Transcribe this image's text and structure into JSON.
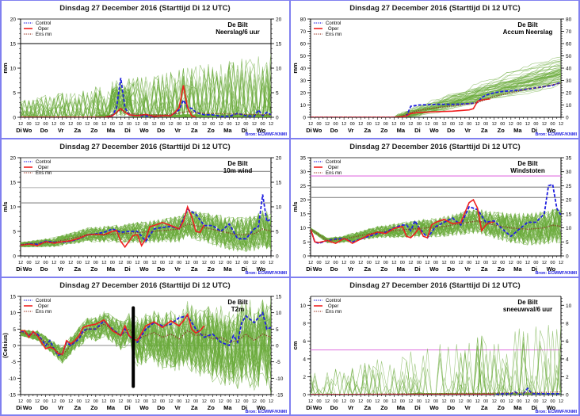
{
  "page": {
    "title": "Dinsdag 27 December 2016",
    "start_label": "(Starttijd Di 12 UTC)",
    "source": "Bron: ECMWF/KNMI",
    "legend": [
      {
        "label": "Control",
        "color": "#2020e0",
        "style": "dotted-dashed"
      },
      {
        "label": "Oper",
        "color": "#f02020",
        "style": "solid"
      },
      {
        "label": "Ens mn",
        "color": "#a04030",
        "style": "dotted"
      }
    ],
    "colors": {
      "ensemble": "#6aaa3a",
      "control": "#2020e0",
      "oper": "#f02020",
      "ensmean": "#8b3a2a",
      "threshold_magenta": "#e070e0",
      "divider": "#8080f0"
    }
  },
  "x_axis": {
    "hour_labels": [
      "12",
      "00",
      "12",
      "00",
      "12",
      "00",
      "12",
      "00",
      "12",
      "00",
      "12",
      "00",
      "12",
      "00",
      "12",
      "00",
      "12",
      "00",
      "12",
      "00",
      "12",
      "00",
      "12",
      "00",
      "12",
      "00",
      "12",
      "00",
      "12",
      "00",
      "12"
    ],
    "day_labels": [
      "Di",
      "Wo",
      "Do",
      "Vr",
      "Za",
      "Zo",
      "Ma",
      "Di",
      "Wo",
      "Do",
      "Vr",
      "Za",
      "Zo",
      "Ma",
      "Di",
      "Wo"
    ]
  },
  "chart_data": [
    {
      "type": "line",
      "location": "De Bilt",
      "title": "Neerslag/6 uur",
      "ylabel": "mm",
      "ylim": [
        0,
        20
      ],
      "yticks": [
        0,
        5,
        10,
        15,
        20
      ],
      "hlines": [
        {
          "y": 15,
          "color": "#000000"
        }
      ],
      "x_unit": "hours since Di 12 UTC",
      "xlim": [
        0,
        360
      ],
      "series": [
        {
          "name": "Control",
          "x": [
            0,
            120,
            132,
            138,
            144,
            150,
            156,
            168,
            192,
            216,
            228,
            234,
            240,
            246,
            252,
            264,
            276,
            288,
            300,
            312,
            324,
            336,
            342,
            348,
            354,
            360
          ],
          "values": [
            0,
            0,
            0.3,
            2,
            8,
            2,
            0.5,
            0.3,
            0.2,
            0.3,
            1.5,
            3.5,
            2,
            1.8,
            1,
            0.5,
            0.5,
            0.2,
            0.2,
            0.8,
            0.3,
            0.2,
            1.5,
            0.3,
            1,
            0.5
          ]
        },
        {
          "name": "Oper",
          "x": [
            0,
            120,
            132,
            138,
            144,
            150,
            156,
            168,
            180,
            192,
            204,
            216,
            222,
            228,
            234,
            240,
            246,
            252
          ],
          "values": [
            0,
            0,
            0.3,
            1,
            1.8,
            1,
            0.5,
            0.3,
            0.6,
            0.2,
            0.3,
            0.3,
            1,
            2,
            6.5,
            2,
            0.3,
            0
          ]
        },
        {
          "name": "Ens mn",
          "x": [
            0,
            120,
            132,
            144,
            156,
            180,
            204,
            228,
            240,
            264,
            300,
            330,
            360
          ],
          "values": [
            0,
            0,
            0.5,
            1.5,
            0.8,
            0.5,
            0.5,
            0.8,
            1.2,
            0.8,
            0.7,
            0.6,
            0.5
          ]
        }
      ]
    },
    {
      "type": "line",
      "location": "De Bilt",
      "title": "Accum Neerslag",
      "ylabel": "mm",
      "ylim": [
        0,
        80
      ],
      "yticks": [
        0,
        10,
        20,
        30,
        40,
        50,
        60,
        70,
        80
      ],
      "xlim": [
        0,
        360
      ],
      "series": [
        {
          "name": "Control",
          "x": [
            0,
            120,
            132,
            138,
            144,
            150,
            156,
            180,
            204,
            228,
            240,
            246,
            252,
            264,
            276,
            300,
            324,
            348,
            360
          ],
          "values": [
            0,
            0,
            0.5,
            1,
            9,
            9.5,
            10,
            10.5,
            10.5,
            11,
            12,
            16,
            18,
            20,
            21,
            22,
            24,
            26,
            28.5
          ]
        },
        {
          "name": "Oper",
          "x": [
            0,
            120,
            132,
            138,
            144,
            150,
            156,
            180,
            204,
            228,
            234,
            240,
            246,
            252,
            258
          ],
          "values": [
            0,
            0,
            0.5,
            1,
            3,
            3.5,
            4,
            4.5,
            5,
            6,
            7,
            13,
            14,
            14.5,
            15
          ]
        },
        {
          "name": "Ens mn",
          "x": [
            0,
            120,
            132,
            144,
            168,
            192,
            216,
            240,
            264,
            288,
            312,
            336,
            360
          ],
          "values": [
            0,
            0,
            1,
            4,
            7,
            8.5,
            10,
            12,
            17,
            20,
            23,
            25,
            28
          ]
        }
      ]
    },
    {
      "type": "line",
      "location": "De Bilt",
      "title": "10m wind",
      "ylabel": "m/s",
      "ylim": [
        0,
        20
      ],
      "yticks": [
        0,
        5,
        10,
        15,
        20
      ],
      "hlines": [
        {
          "y": 17.2,
          "color": "#888888"
        },
        {
          "y": 13.9,
          "color": "#bbbbbb"
        },
        {
          "y": 10.8,
          "color": "#888888"
        }
      ],
      "xlim": [
        0,
        360
      ],
      "series": [
        {
          "name": "Control",
          "x": [
            0,
            12,
            24,
            36,
            48,
            60,
            72,
            84,
            96,
            108,
            120,
            132,
            144,
            156,
            168,
            180,
            192,
            204,
            216,
            228,
            240,
            252,
            264,
            276,
            288,
            300,
            312,
            324,
            336,
            342,
            348,
            354,
            360
          ],
          "values": [
            2.2,
            2.5,
            2.4,
            3,
            2.8,
            2.8,
            3,
            3.5,
            4.3,
            4.5,
            4.8,
            5.5,
            4.8,
            5,
            5,
            3,
            5.5,
            5.8,
            6,
            5.5,
            9.5,
            8.5,
            6.2,
            6.2,
            5,
            6.5,
            3.5,
            3.5,
            5.5,
            6,
            12.5,
            7,
            7.5
          ]
        },
        {
          "name": "Oper",
          "x": [
            0,
            12,
            24,
            36,
            48,
            60,
            72,
            84,
            96,
            108,
            120,
            132,
            138,
            144,
            150,
            156,
            162,
            168,
            174,
            180,
            186,
            192,
            204,
            216,
            228,
            234,
            240,
            246,
            252,
            258,
            264
          ],
          "values": [
            2.2,
            2.4,
            2.1,
            2.9,
            2.6,
            2.9,
            3.1,
            3.6,
            4.3,
            4.4,
            4.3,
            5,
            5.2,
            3,
            1.8,
            3,
            4.2,
            4.3,
            2.1,
            3.5,
            6,
            6.2,
            6.8,
            6.2,
            5.5,
            7,
            10,
            8,
            5,
            4.8,
            6.3
          ]
        },
        {
          "name": "Ens mn",
          "x": [
            0,
            48,
            96,
            144,
            192,
            228,
            240,
            264,
            288,
            312,
            336,
            348,
            360
          ],
          "values": [
            2.3,
            2.8,
            4.3,
            4.5,
            5,
            5.5,
            6.5,
            5.8,
            5,
            4.3,
            4.5,
            5.5,
            5
          ]
        }
      ]
    },
    {
      "type": "line",
      "location": "De Bilt",
      "title": "Windstoten",
      "ylabel": "m/s",
      "ylim": [
        0,
        35
      ],
      "yticks": [
        0,
        5,
        10,
        15,
        20,
        25,
        30,
        35
      ],
      "hlines": [
        {
          "y": 28.5,
          "color": "#e070e0"
        },
        {
          "y": 24.5,
          "color": "#888888"
        },
        {
          "y": 20.8,
          "color": "#888888"
        }
      ],
      "xlim": [
        0,
        360
      ],
      "series": [
        {
          "name": "Control",
          "x": [
            0,
            6,
            12,
            24,
            36,
            48,
            60,
            72,
            84,
            96,
            108,
            120,
            132,
            138,
            144,
            150,
            156,
            168,
            180,
            192,
            204,
            216,
            228,
            240,
            252,
            264,
            276,
            288,
            300,
            312,
            324,
            336,
            342,
            348,
            354,
            360
          ],
          "values": [
            9.5,
            5,
            4.5,
            5.5,
            6,
            6.2,
            5,
            6,
            7,
            8,
            8.5,
            10,
            11,
            11,
            9,
            12.5,
            10,
            6.5,
            10.5,
            12,
            13.5,
            11,
            17.5,
            16.5,
            12,
            12.5,
            9.5,
            7,
            9.5,
            12,
            12,
            15,
            25,
            25.5,
            17,
            14.5
          ]
        },
        {
          "name": "Oper",
          "x": [
            0,
            6,
            12,
            24,
            36,
            48,
            54,
            60,
            72,
            84,
            96,
            108,
            120,
            132,
            138,
            144,
            150,
            156,
            162,
            168,
            174,
            180,
            192,
            204,
            216,
            228,
            234,
            240,
            246,
            252,
            258,
            264
          ],
          "values": [
            9.5,
            5,
            4.8,
            5.5,
            4.5,
            6.2,
            5.5,
            4.5,
            6,
            7.5,
            8.5,
            8,
            9.8,
            10.5,
            7,
            6.5,
            8,
            10,
            7,
            6.5,
            11,
            12,
            13,
            11.5,
            12,
            19,
            20,
            17,
            9,
            11,
            12,
            12
          ]
        },
        {
          "name": "Ens mn",
          "x": [
            0,
            24,
            48,
            96,
            144,
            192,
            240,
            264,
            288,
            312,
            336,
            348,
            360
          ],
          "values": [
            9.5,
            5.5,
            6,
            8.5,
            9.5,
            10.5,
            12.5,
            11,
            10,
            9.5,
            10,
            11,
            10.5
          ]
        }
      ]
    },
    {
      "type": "line",
      "location": "De Bilt",
      "title": "T2m",
      "ylabel": "(Celsius)",
      "ylim": [
        -15,
        15
      ],
      "yticks": [
        -15,
        -10,
        -5,
        0,
        5,
        10,
        15
      ],
      "hlines": [
        {
          "y": 0,
          "color": "#888888"
        }
      ],
      "vmarker": {
        "x": 162,
        "from": -12.5,
        "to": 11.5
      },
      "xlim": [
        0,
        360
      ],
      "series": [
        {
          "name": "Control",
          "x": [
            0,
            6,
            12,
            18,
            24,
            30,
            36,
            42,
            48,
            54,
            60,
            66,
            72,
            78,
            84,
            90,
            96,
            108,
            120,
            132,
            144,
            150,
            156,
            162,
            168,
            180,
            192,
            204,
            216,
            228,
            240,
            252,
            264,
            276,
            288,
            300,
            306,
            312,
            318,
            324,
            336,
            348,
            354,
            360
          ],
          "values": [
            4.5,
            4,
            3,
            4,
            3.5,
            2,
            0,
            1.5,
            -1,
            -3,
            -2.5,
            1,
            0,
            1,
            2,
            4.5,
            5,
            5,
            7.5,
            5,
            3,
            5,
            3,
            1.5,
            1,
            5,
            7,
            6,
            6.5,
            8.5,
            9,
            5,
            2.5,
            3.5,
            1,
            0,
            3,
            1,
            7,
            9,
            7,
            10,
            5,
            5.5
          ]
        },
        {
          "name": "Oper",
          "x": [
            0,
            6,
            12,
            18,
            24,
            30,
            36,
            42,
            48,
            54,
            60,
            66,
            72,
            78,
            84,
            90,
            96,
            108,
            120,
            132,
            144,
            150,
            156,
            162,
            168,
            180,
            192,
            204,
            216,
            228,
            234,
            240,
            246,
            252,
            258,
            264
          ],
          "values": [
            4.5,
            4.5,
            2.5,
            4.3,
            3,
            1,
            -1,
            -0.5,
            -1,
            -2.5,
            -2.7,
            1.5,
            0.5,
            1.5,
            3,
            5.5,
            6,
            6.5,
            7.8,
            4.5,
            3,
            6,
            3,
            2,
            1.5,
            6,
            7.2,
            5.5,
            7.5,
            6,
            7.5,
            9.5,
            5,
            3.8,
            4.5,
            6
          ]
        },
        {
          "name": "Ens mn",
          "x": [
            0,
            12,
            24,
            36,
            48,
            60,
            72,
            84,
            96,
            108,
            120,
            132,
            144,
            156,
            168,
            180,
            192,
            204,
            216,
            228,
            240,
            252,
            264,
            276,
            288,
            300,
            312,
            324,
            336,
            348,
            360
          ],
          "values": [
            4,
            3.5,
            3,
            1,
            -1,
            -3,
            0,
            2.5,
            5,
            5,
            6.5,
            5,
            3,
            5,
            2,
            3,
            4,
            2.5,
            3.5,
            2,
            4.5,
            3,
            3.5,
            2,
            2.5,
            1,
            1.5,
            3.5,
            1.5,
            3.5,
            2.5
          ]
        }
      ]
    },
    {
      "type": "line",
      "location": "De Bilt",
      "title": "sneeuwval/6 uur",
      "ylabel": "cm",
      "ylim": [
        0,
        11
      ],
      "yticks": [
        0,
        2,
        4,
        6,
        8,
        10
      ],
      "hlines": [
        {
          "y": 5,
          "color": "#e070e0"
        }
      ],
      "xlim": [
        0,
        360
      ],
      "series": [
        {
          "name": "Control",
          "x": [
            0,
            264,
            276,
            288,
            294,
            300,
            306,
            312,
            318,
            330,
            360
          ],
          "values": [
            0,
            0,
            0.1,
            0.1,
            0.3,
            0,
            0.1,
            0.7,
            0.1,
            0.1,
            0.1
          ]
        },
        {
          "name": "Oper",
          "x": [
            0,
            264
          ],
          "values": [
            0,
            0
          ]
        },
        {
          "name": "Ens mn",
          "x": [
            0,
            144,
            180,
            216,
            252,
            288,
            312,
            336,
            360
          ],
          "values": [
            0,
            0.1,
            0.1,
            0.15,
            0.15,
            0.2,
            0.2,
            0.25,
            0.3
          ]
        }
      ]
    }
  ]
}
